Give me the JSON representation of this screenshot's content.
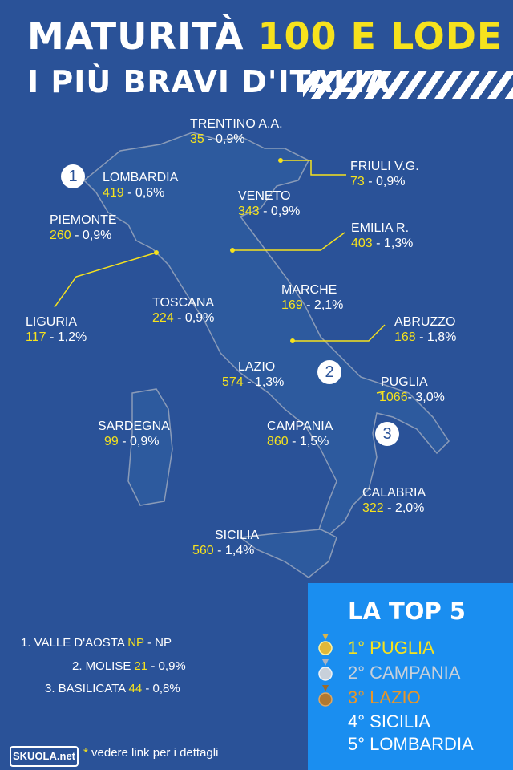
{
  "title": {
    "line1_a": "MATURITÀ",
    "line1_b": "100 E LODE",
    "line2": "I PIÙ BRAVI D'ITALIA"
  },
  "regions": [
    {
      "name": "TRENTINO A.A.",
      "count": "35",
      "pct": "- 0,9%"
    },
    {
      "name": "FRIULI V.G.",
      "count": "73",
      "pct": "- 0,9%"
    },
    {
      "name": "LOMBARDIA",
      "count": "419",
      "pct": "- 0,6%"
    },
    {
      "name": "VENETO",
      "count": "343",
      "pct": "- 0,9%"
    },
    {
      "name": "PIEMONTE",
      "count": "260",
      "pct": "- 0,9%"
    },
    {
      "name": "EMILIA R.",
      "count": "403",
      "pct": "- 1,3%"
    },
    {
      "name": "LIGURIA",
      "count": "117",
      "pct": "- 1,2%"
    },
    {
      "name": "MARCHE",
      "count": "169",
      "pct": "- 2,1%"
    },
    {
      "name": "TOSCANA",
      "count": "224",
      "pct": "- 0,9%"
    },
    {
      "name": "ABRUZZO",
      "count": "168",
      "pct": "- 1,8%"
    },
    {
      "name": "LAZIO",
      "count": "574",
      "pct": "- 1,3%"
    },
    {
      "name": "PUGLIA",
      "count": "1066",
      "pct": "- 3,0%"
    },
    {
      "name": "SARDEGNA",
      "count": "99",
      "pct": "- 0,9%"
    },
    {
      "name": "CAMPANIA",
      "count": "860",
      "pct": "- 1,5%"
    },
    {
      "name": "CALABRIA",
      "count": "322",
      "pct": "- 2,0%"
    },
    {
      "name": "SICILIA",
      "count": "560",
      "pct": "- 1,4%"
    }
  ],
  "ranks": [
    "1",
    "2",
    "3"
  ],
  "extras": [
    {
      "name": "1. VALLE D'AOSTA",
      "count": "NP",
      "pct": "- NP"
    },
    {
      "name": "2. MOLISE",
      "count": "21",
      "pct": "- 0,9%"
    },
    {
      "name": "3. BASILICATA",
      "count": "44",
      "pct": "- 0,8%"
    }
  ],
  "top5": {
    "title": "LA TOP 5",
    "items": [
      "1° PUGLIA",
      "2° CAMPANIA",
      "3° LAZIO",
      "4° SICILIA",
      "5° LOMBARDIA"
    ]
  },
  "colors": {
    "background": "#2a5298",
    "highlight": "#f6e21d",
    "gold": "#f6e21d",
    "silver": "#c8d0da",
    "bronze": "#e8962a",
    "top5_bg": "#1a8ef0"
  },
  "logo": "SKUOLA.net",
  "note": "* vedere link per i dettagli"
}
